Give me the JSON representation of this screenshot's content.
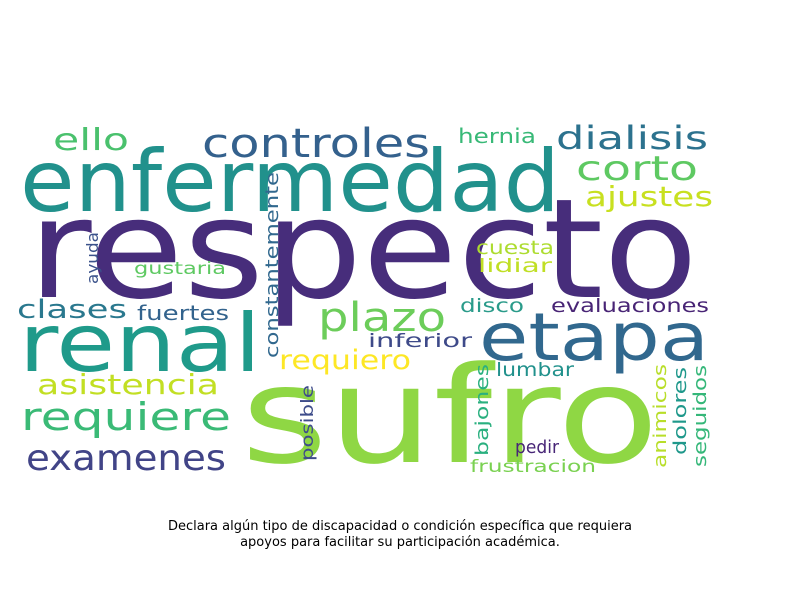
{
  "words": [
    {
      "text": "respecto",
      "color": "#472d7b"
    },
    {
      "text": "sufro",
      "color": "#8fd744"
    },
    {
      "text": "enfermedad",
      "color": "#21918c"
    },
    {
      "text": "renal",
      "color": "#1f9a8a"
    },
    {
      "text": "etapa",
      "color": "#31688e"
    },
    {
      "text": "controles",
      "color": "#34618d"
    },
    {
      "text": "dialisis",
      "color": "#2c728e"
    },
    {
      "text": "corto",
      "color": "#5ec962"
    },
    {
      "text": "ello",
      "color": "#4ac16d"
    },
    {
      "text": "hernia",
      "color": "#38b977"
    },
    {
      "text": "ajustes",
      "color": "#c8e020"
    },
    {
      "text": "plazo",
      "color": "#6ccd5a"
    },
    {
      "text": "clases",
      "color": "#2a788e"
    },
    {
      "text": "fuertes",
      "color": "#33638d"
    },
    {
      "text": "requiero",
      "color": "#fde725"
    },
    {
      "text": "asistencia",
      "color": "#c2df23"
    },
    {
      "text": "requiere",
      "color": "#3aba76"
    },
    {
      "text": "examenes",
      "color": "#414487"
    },
    {
      "text": "constantemente",
      "color": "#31688e"
    },
    {
      "text": "ayuda",
      "color": "#3b528b"
    },
    {
      "text": "gustaria",
      "color": "#5ec962"
    },
    {
      "text": "cuesta",
      "color": "#addc30"
    },
    {
      "text": "lidiar",
      "color": "#c0df25"
    },
    {
      "text": "disco",
      "color": "#2a9b8a"
    },
    {
      "text": "evaluaciones",
      "color": "#482475"
    },
    {
      "text": "inferior",
      "color": "#3e4a89"
    },
    {
      "text": "lumbar",
      "color": "#21918c"
    },
    {
      "text": "posible",
      "color": "#3e4c8a"
    },
    {
      "text": "bajones",
      "color": "#2ab07f"
    },
    {
      "text": "animicos",
      "color": "#b8de29"
    },
    {
      "text": "dolores",
      "color": "#1f988b"
    },
    {
      "text": "seguidos",
      "color": "#35b779"
    },
    {
      "text": "pedir",
      "color": "#482677"
    },
    {
      "text": "frustracion",
      "color": "#7ad151"
    }
  ],
  "caption": "Declara algún tipo de discapacidad o condición específica que requiera apoyos para facilitar su participación académica."
}
